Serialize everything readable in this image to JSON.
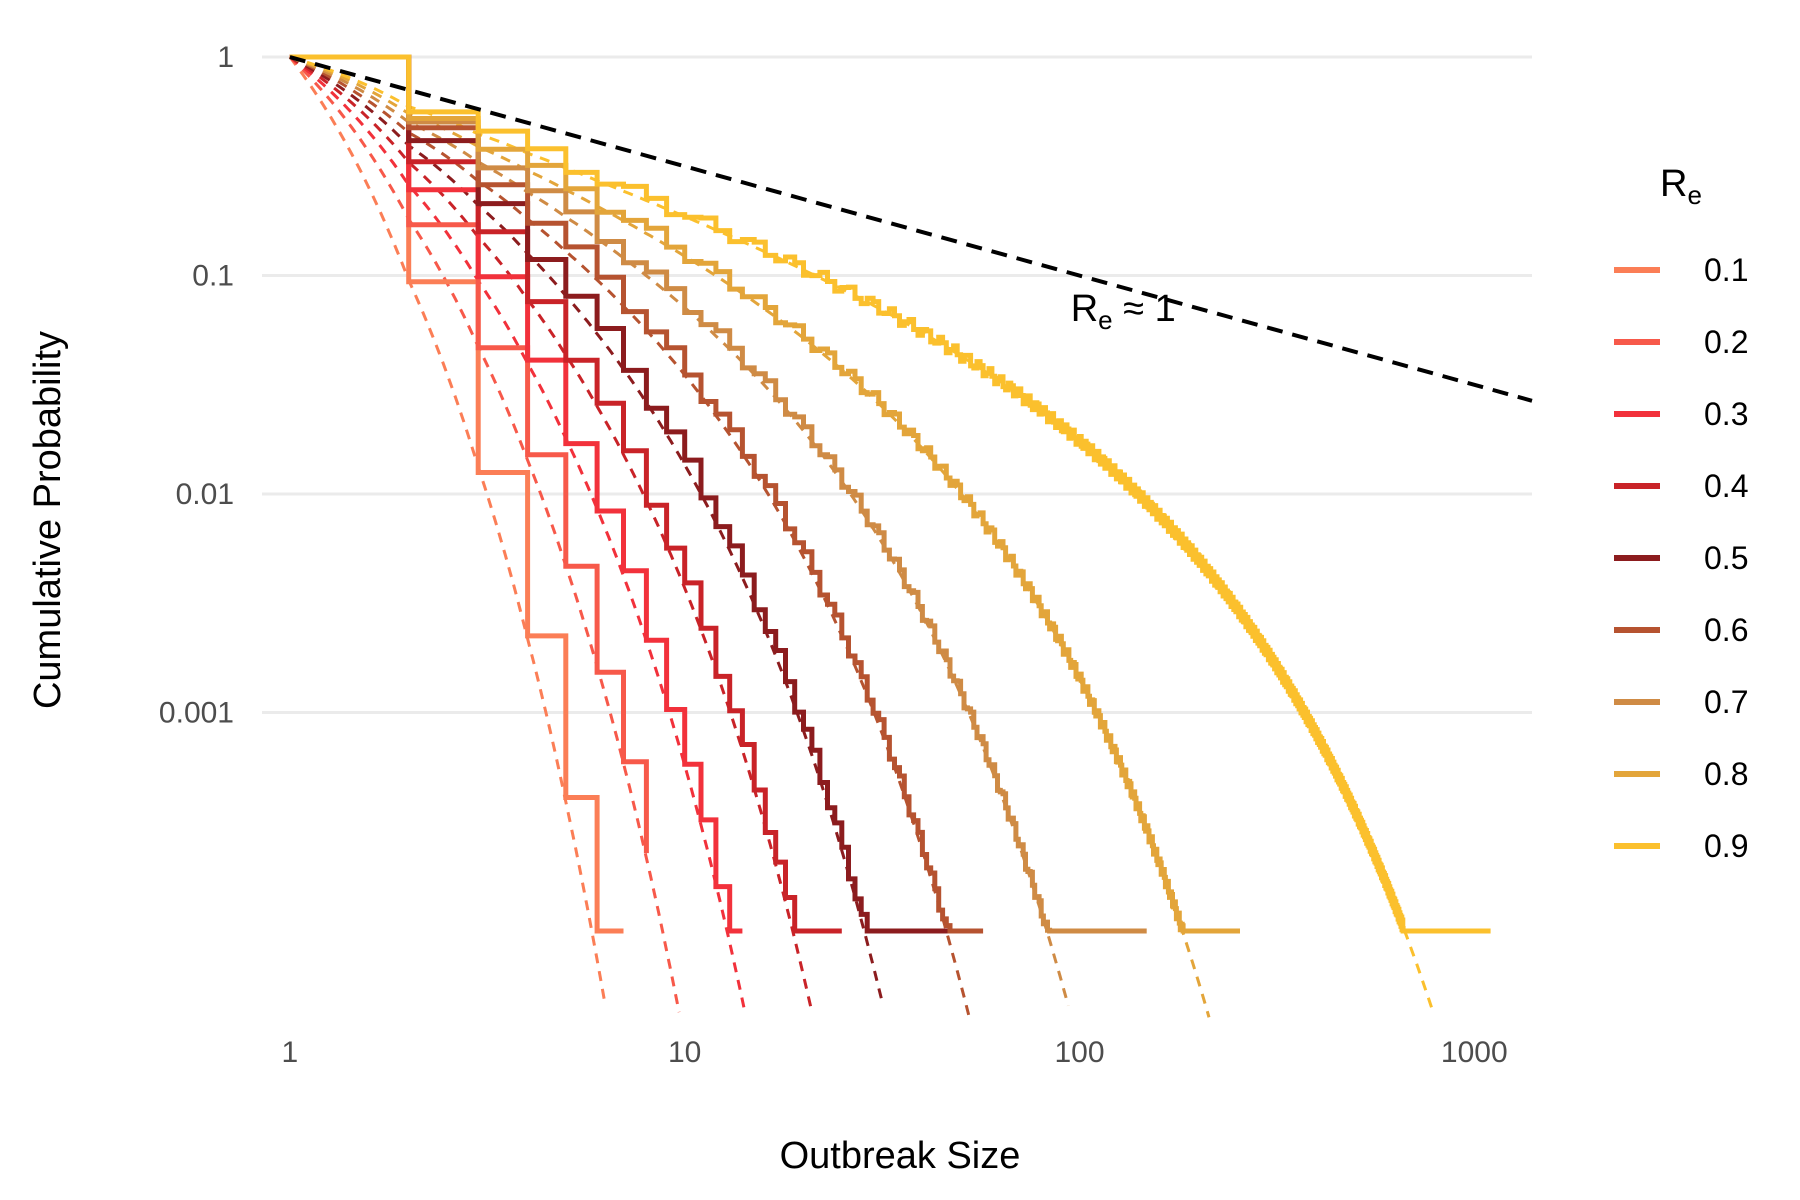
{
  "chart_data": {
    "type": "line",
    "title": "",
    "xlabel": "Outbreak Size",
    "ylabel": "Cumulative Probability",
    "x_scale": "log",
    "y_scale": "log",
    "xlim": [
      0.85,
      1400
    ],
    "ylim": [
      4e-05,
      1.1
    ],
    "x_ticks": [
      {
        "value": 1,
        "label": "1"
      },
      {
        "value": 10,
        "label": "10"
      },
      {
        "value": 100,
        "label": "100"
      },
      {
        "value": 1000,
        "label": "1000"
      }
    ],
    "y_ticks": [
      {
        "value": 1,
        "label": "1"
      },
      {
        "value": 0.1,
        "label": "0.1"
      },
      {
        "value": 0.01,
        "label": "0.01"
      },
      {
        "value": 0.001,
        "label": "0.001"
      }
    ],
    "grid": "horizontal",
    "legend": {
      "title_main": "R",
      "title_sub": "e",
      "position": "right"
    },
    "annotation": {
      "main": "R",
      "sub": "e",
      "rest": " ≈ 1",
      "x": 95,
      "y": 0.062
    },
    "reference_line": {
      "name": "Re ≈ 1",
      "color": "#000000",
      "exponent": -0.5,
      "x_range": [
        1,
        1400
      ]
    },
    "series": [
      {
        "name": "0.1",
        "re": 0.1,
        "color": "#FB7E56",
        "max_x": 7,
        "min_y": 0.0001
      },
      {
        "name": "0.2",
        "re": 0.2,
        "color": "#F7594A",
        "max_x": 8,
        "min_y": 0.0001
      },
      {
        "name": "0.3",
        "re": 0.3,
        "color": "#F2313B",
        "max_x": 14,
        "min_y": 0.0001
      },
      {
        "name": "0.4",
        "re": 0.4,
        "color": "#C92328",
        "max_x": 25,
        "min_y": 0.0001
      },
      {
        "name": "0.5",
        "re": 0.5,
        "color": "#8C1C1E",
        "max_x": 51,
        "min_y": 0.0001
      },
      {
        "name": "0.6",
        "re": 0.6,
        "color": "#B65330",
        "max_x": 57,
        "min_y": 0.0001
      },
      {
        "name": "0.7",
        "re": 0.7,
        "color": "#CF8B45",
        "max_x": 148,
        "min_y": 0.0001
      },
      {
        "name": "0.8",
        "re": 0.8,
        "color": "#E3A53A",
        "max_x": 255,
        "min_y": 0.0001
      },
      {
        "name": "0.9",
        "re": 0.9,
        "color": "#FBC02D",
        "max_x": 1100,
        "min_y": 0.0001
      }
    ]
  }
}
